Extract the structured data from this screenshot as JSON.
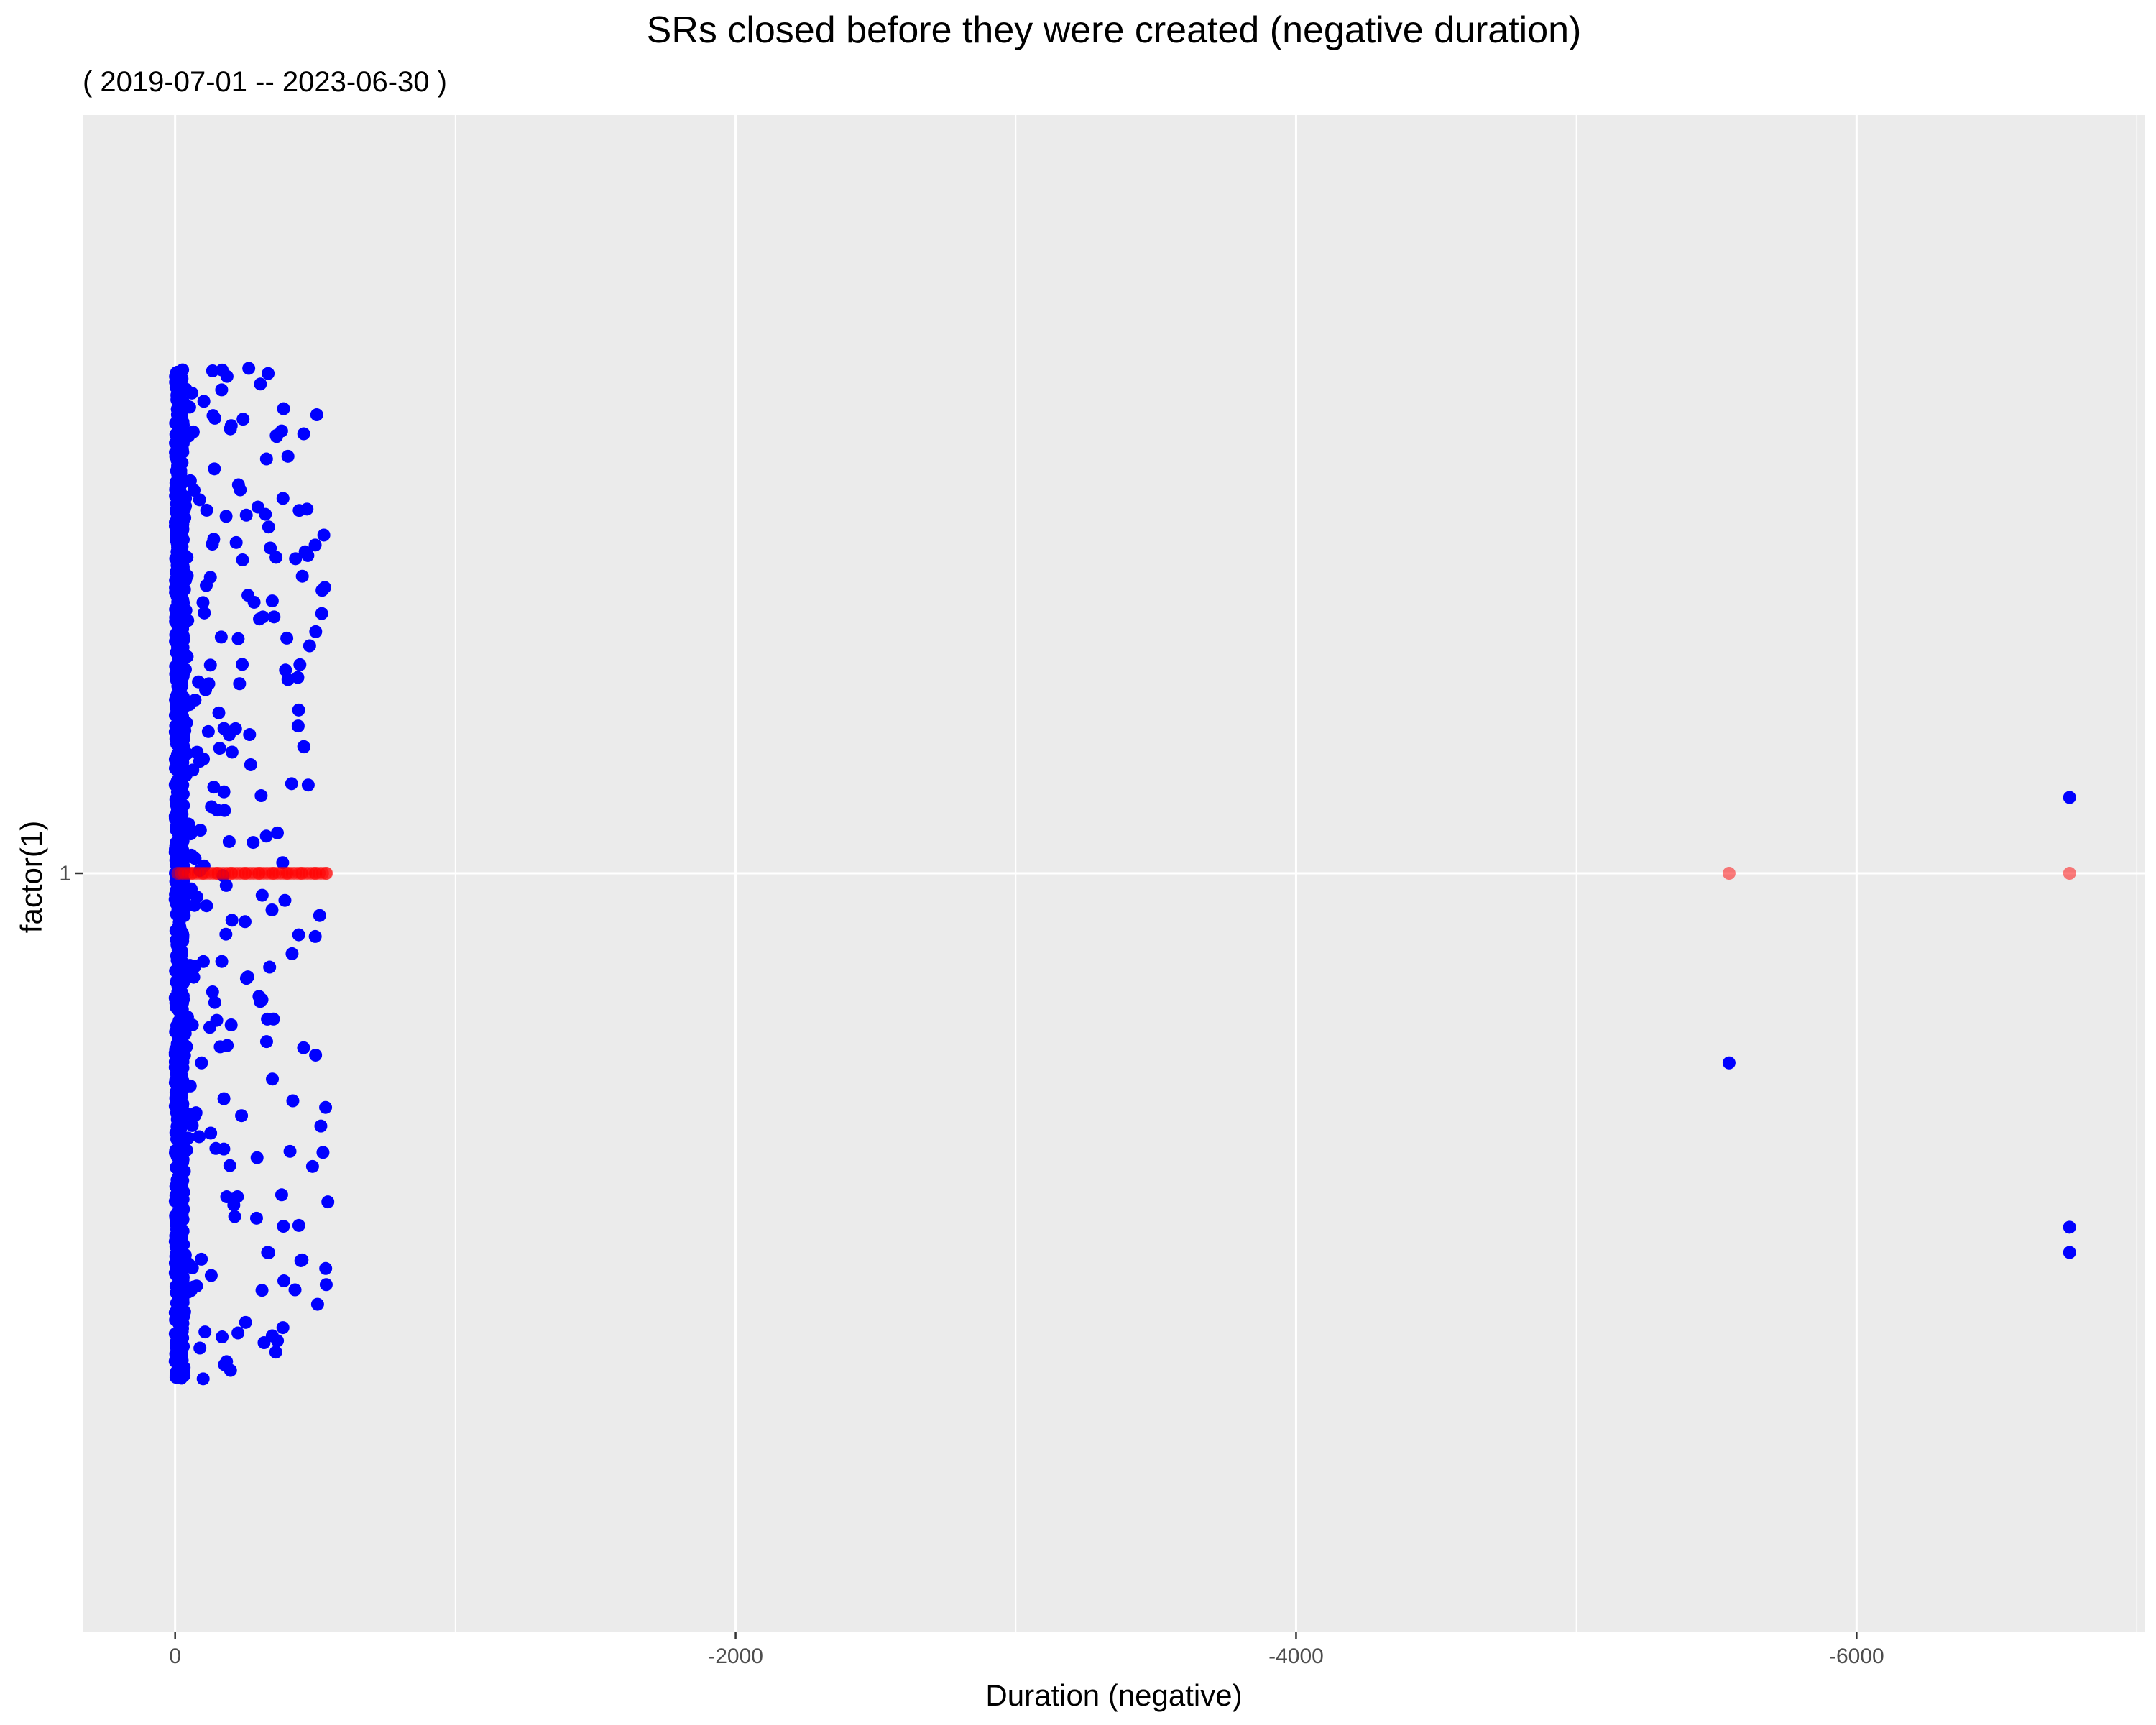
{
  "chart_data": {
    "type": "scatter",
    "title": "SRs closed before they were created (negative duration)",
    "subtitle": "( 2019-07-01 -- 2023-06-30 )",
    "xlabel": "Duration (negative)",
    "ylabel": "factor(1)",
    "x_axis": {
      "reversed": true,
      "xlim": [
        330,
        -7030
      ],
      "ticks": [
        0,
        -2000,
        -4000,
        -6000
      ],
      "tick_labels": [
        "0",
        "-2000",
        "-4000",
        "-6000"
      ]
    },
    "y_axis": {
      "categories": [
        "1"
      ],
      "ylim": [
        0.4,
        1.6
      ]
    },
    "grid": true,
    "background": "#ebebeb",
    "series": [
      {
        "name": "",
        "geom": "jitter",
        "color": "#0000ff",
        "jitter_range": [
          0.6,
          1.4
        ],
        "x": [
          -5545,
          -6760,
          -6760,
          -6760,
          -8,
          -45,
          -140,
          -230,
          -310,
          -360,
          -410,
          -460,
          -500,
          -520,
          -545,
          -20,
          -60,
          -100,
          -150,
          -200,
          -260,
          -330,
          -380,
          -420,
          -480
        ],
        "y": [
          0.85,
          1.06,
          0.72,
          0.7,
          1.3,
          1.2,
          1.32,
          1.15,
          0.9,
          1.25,
          0.78,
          1.1,
          0.95,
          0.8,
          0.74,
          0.66,
          1.38,
          0.6,
          1.05,
          0.88,
          1.22,
          0.7,
          1.35,
          0.82,
          1.18
        ]
      },
      {
        "name": "",
        "geom": "point",
        "color": "#ff0000",
        "alpha": 0.5,
        "x": [
          -5545,
          -6760,
          -20,
          -60,
          -100,
          -150,
          -200,
          -250,
          -300,
          -350,
          -400,
          -450,
          -500,
          -540
        ],
        "y": [
          1,
          1,
          1,
          1,
          1,
          1,
          1,
          1,
          1,
          1,
          1,
          1,
          1,
          1
        ]
      }
    ]
  }
}
